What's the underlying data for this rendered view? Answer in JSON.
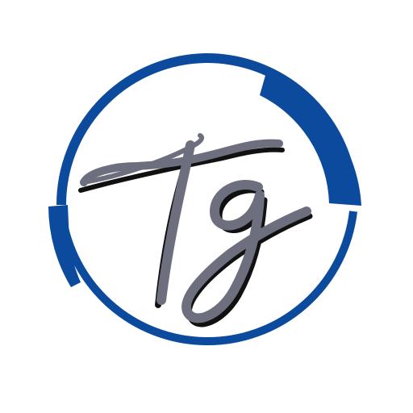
{
  "logo": {
    "monogram": "Tg",
    "ring_color": "#0b4a9c",
    "letter_color": "#6d6f7f",
    "shadow_color": "#111111",
    "background_color": "#ffffff"
  }
}
